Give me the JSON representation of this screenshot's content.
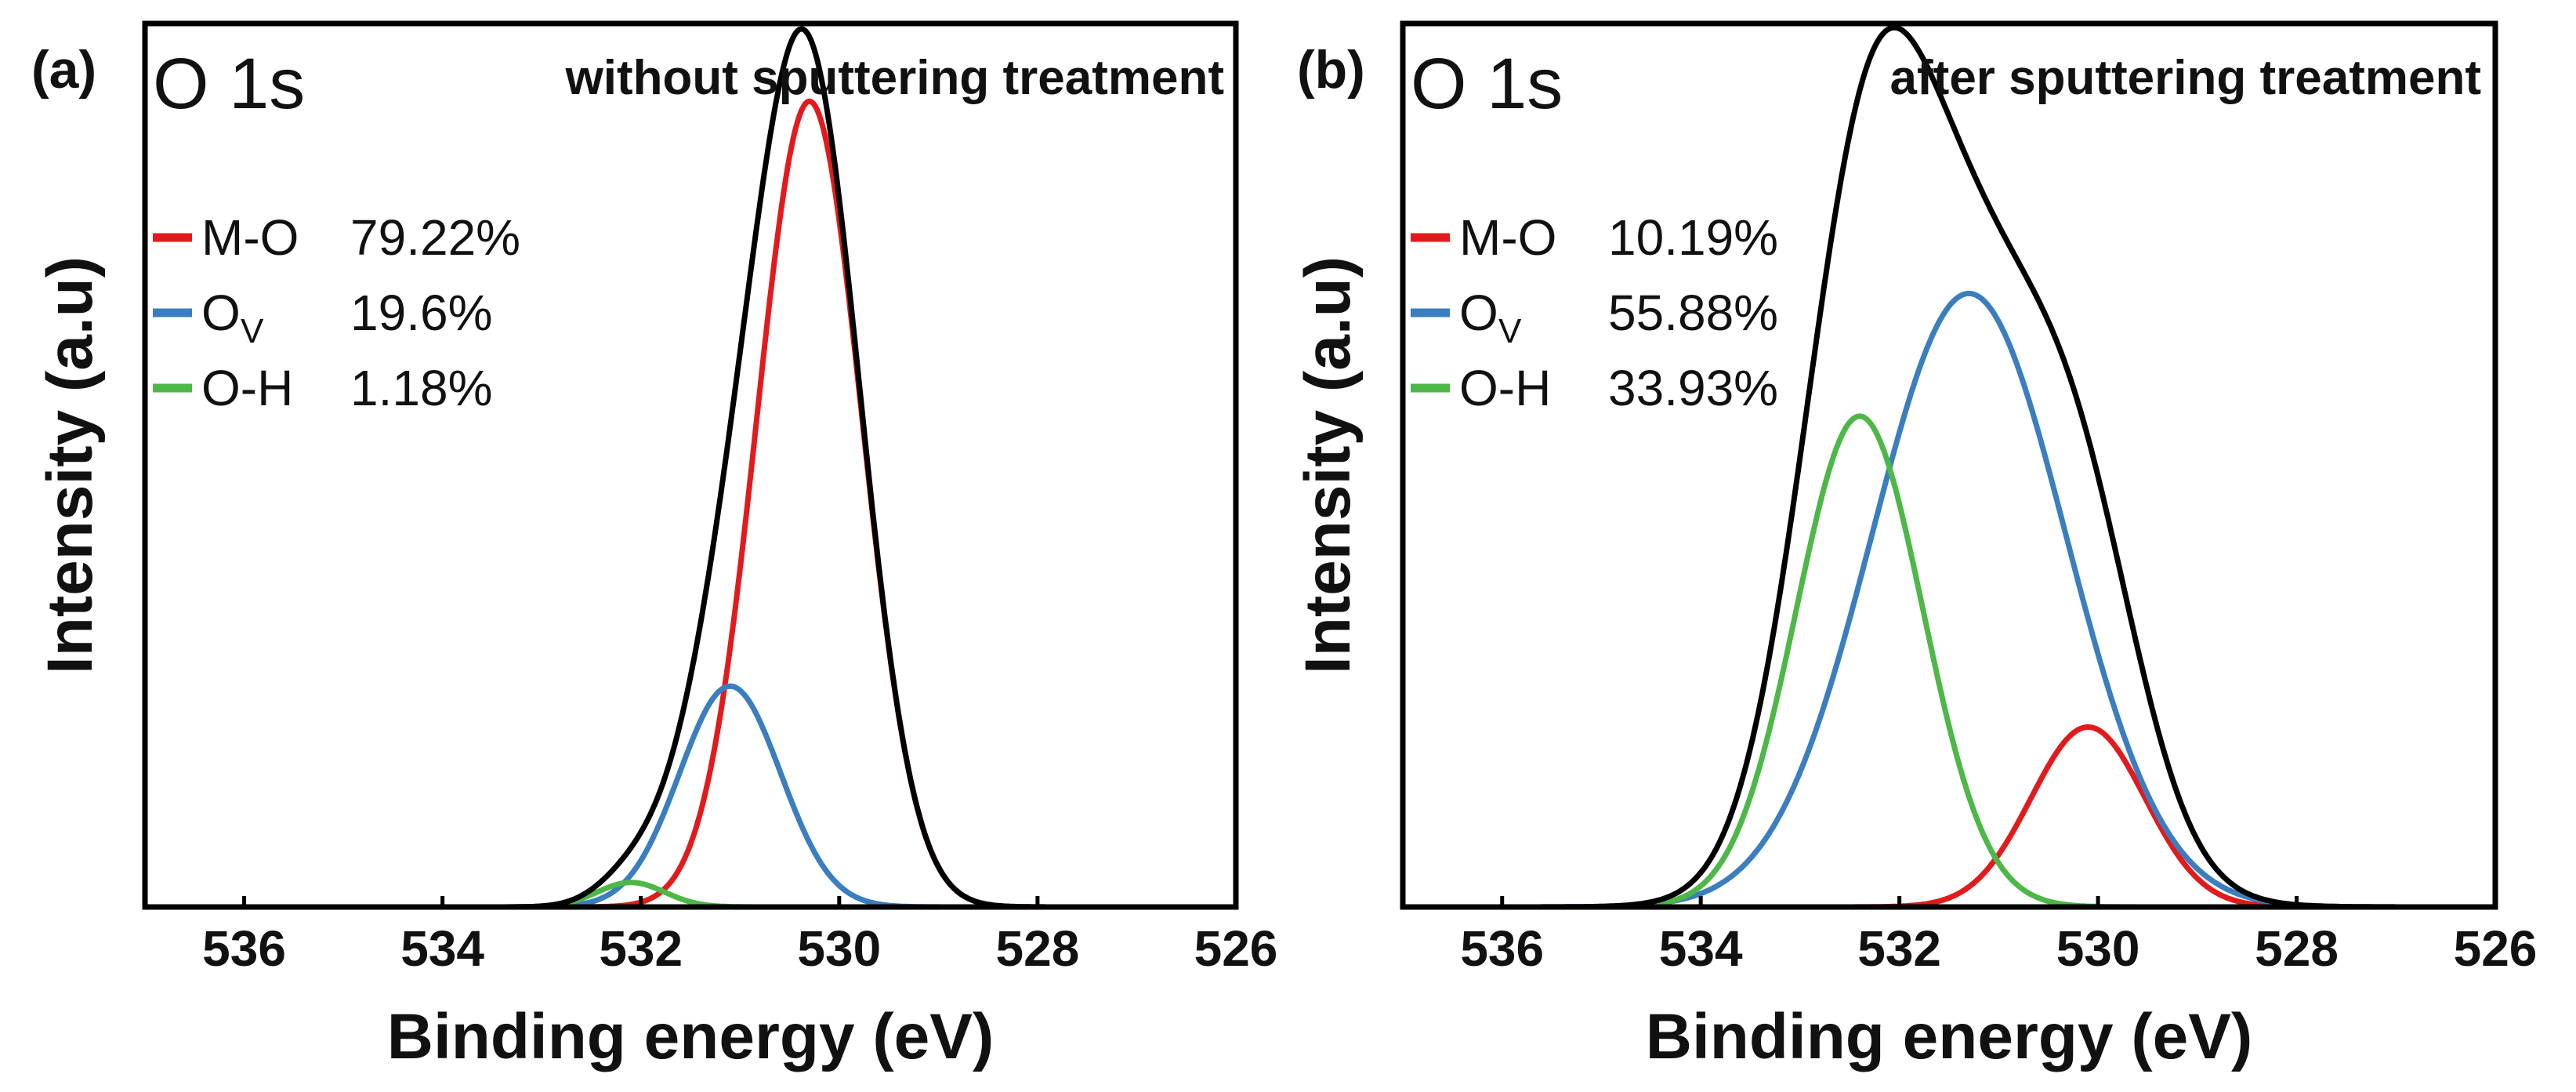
{
  "chart_data": [
    {
      "type": "line",
      "panel_label": "(a)",
      "spectrum_label": "O 1s",
      "title": "without sputtering treatment",
      "xlabel": "Binding energy (eV)",
      "ylabel": "Intensity (a.u)",
      "xlim": [
        537,
        526
      ],
      "xticks": [
        "536",
        "534",
        "532",
        "530",
        "528",
        "526"
      ],
      "xtick_values": [
        536,
        534,
        532,
        530,
        528,
        526
      ],
      "ylim": [
        0,
        1.08
      ],
      "grid": false,
      "legend_position": "upper-left",
      "legend": [
        {
          "name": "M-O",
          "sub": "",
          "percent": "79.22%",
          "color": "#e31a1c"
        },
        {
          "name": "O",
          "sub": "V",
          "percent": "19.6%",
          "color": "#3a7ebf"
        },
        {
          "name": "O-H",
          "sub": "",
          "percent": "1.18%",
          "color": "#4db847"
        }
      ],
      "components": [
        {
          "name": "M-O",
          "center": 530.3,
          "height": 0.985,
          "fwhm": 1.25,
          "color": "#e31a1c"
        },
        {
          "name": "Ov",
          "center": 531.1,
          "height": 0.27,
          "fwhm": 1.2,
          "color": "#3a7ebf"
        },
        {
          "name": "O-H",
          "center": 532.1,
          "height": 0.03,
          "fwhm": 0.8,
          "color": "#4db847"
        }
      ],
      "envelope_color": "#000000"
    },
    {
      "type": "line",
      "panel_label": "(b)",
      "spectrum_label": "O 1s",
      "title": "after sputtering treatment",
      "xlabel": "Binding energy (eV)",
      "ylabel": "Intensity (a.u)",
      "xlim": [
        537,
        526
      ],
      "xticks": [
        "536",
        "534",
        "532",
        "530",
        "528",
        "526"
      ],
      "xtick_values": [
        536,
        534,
        532,
        530,
        528,
        526
      ],
      "ylim": [
        0,
        1.08
      ],
      "grid": false,
      "legend_position": "upper-left",
      "legend": [
        {
          "name": "M-O",
          "sub": "",
          "percent": "10.19%",
          "color": "#e31a1c"
        },
        {
          "name": "O",
          "sub": "V",
          "percent": "55.88%",
          "color": "#3a7ebf"
        },
        {
          "name": "O-H",
          "sub": "",
          "percent": "33.93%",
          "color": "#4db847"
        }
      ],
      "components": [
        {
          "name": "M-O",
          "center": 530.1,
          "height": 0.22,
          "fwhm": 1.35,
          "color": "#e31a1c"
        },
        {
          "name": "Ov",
          "center": 531.3,
          "height": 0.75,
          "fwhm": 2.3,
          "color": "#3a7ebf"
        },
        {
          "name": "O-H",
          "center": 532.4,
          "height": 0.6,
          "fwhm": 1.5,
          "color": "#4db847"
        }
      ],
      "envelope_color": "#000000"
    }
  ]
}
